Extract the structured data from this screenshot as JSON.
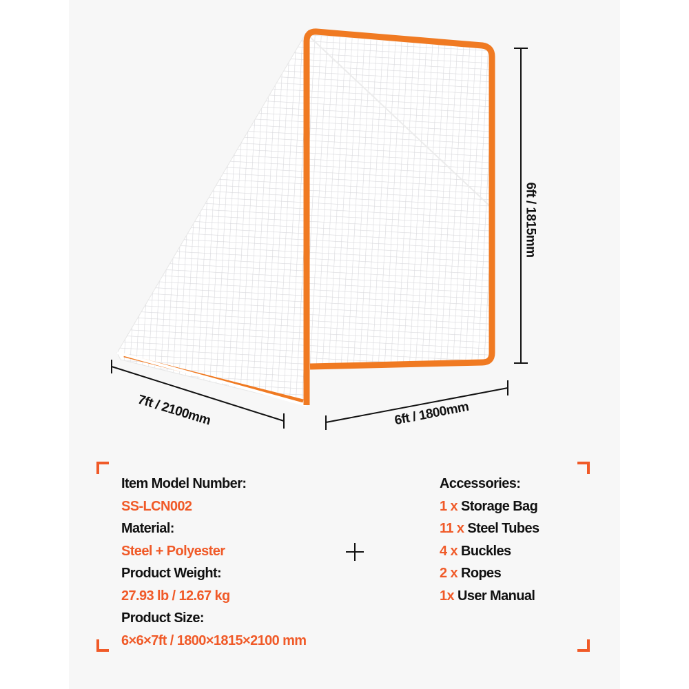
{
  "colors": {
    "accent": "#f05a28",
    "frame": "#f07a22",
    "text": "#111111",
    "panel": "#f7f7f7"
  },
  "dimensions": {
    "height": "6ft / 1815mm",
    "depth": "7ft / 2100mm",
    "width": "6ft / 1800mm"
  },
  "specs": {
    "model_label": "Item Model Number:",
    "model_value": "SS-LCN002",
    "material_label": "Material:",
    "material_value": "Steel + Polyester",
    "weight_label": "Product Weight:",
    "weight_value": "27.93 lb / 12.67 kg",
    "size_label": "Product Size:",
    "size_value": "6×6×7ft / 1800×1815×2100 mm"
  },
  "accessories": {
    "title": "Accessories:",
    "items": [
      {
        "qty": "1 x",
        "name": "Storage Bag"
      },
      {
        "qty": "11 x",
        "name": "Steel Tubes"
      },
      {
        "qty": "4 x",
        "name": "Buckles"
      },
      {
        "qty": "2 x",
        "name": "Ropes"
      },
      {
        "qty": "1x",
        "name": "User Manual"
      }
    ]
  }
}
